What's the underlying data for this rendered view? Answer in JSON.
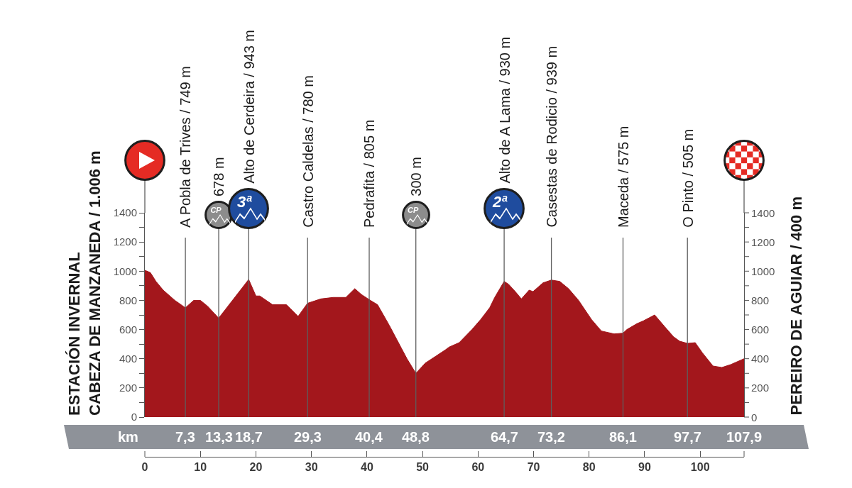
{
  "chart_data": {
    "type": "area",
    "ylabel": "ESTACIÓN INVERNAL\nCABEZA DE MANZANEDA / 1.006 m",
    "y2label": "PEREIRO DE AGUIAR / 400 m",
    "x2label": "km",
    "x": [
      0,
      1.0,
      2.0,
      3.3,
      5.4,
      7.3,
      8.8,
      10.0,
      11.3,
      13.3,
      18.7,
      20.0,
      20.7,
      23.0,
      25.5,
      27.6,
      29.3,
      31.7,
      33.9,
      36.2,
      37.8,
      39.0,
      40.4,
      41.9,
      44.0,
      47.2,
      48.8,
      50.5,
      52.5,
      54.1,
      54.8,
      56.6,
      58.9,
      60.5,
      62.1,
      63.0,
      64.7,
      65.5,
      66.7,
      67.8,
      69.2,
      69.9,
      71.7,
      73.2,
      74.7,
      76.3,
      78.1,
      80.4,
      82.2,
      84.5,
      86.1,
      86.8,
      88.6,
      89.8,
      91.8,
      93.6,
      95.2,
      96.3,
      97.7,
      99.1,
      100.4,
      102.3,
      103.9,
      105.5,
      107.9
    ],
    "values": [
      1006,
      990,
      930,
      870,
      800,
      749,
      800,
      800,
      760,
      678,
      943,
      830,
      830,
      770,
      770,
      690,
      780,
      810,
      820,
      820,
      880,
      840,
      805,
      770,
      630,
      400,
      300,
      370,
      420,
      460,
      480,
      510,
      600,
      670,
      750,
      820,
      930,
      910,
      860,
      810,
      870,
      860,
      920,
      939,
      930,
      880,
      800,
      670,
      590,
      570,
      575,
      600,
      640,
      660,
      700,
      620,
      550,
      520,
      505,
      510,
      440,
      350,
      340,
      360,
      400
    ],
    "color": "#a3171c",
    "xlim": [
      0,
      107.9
    ],
    "xticks": [
      0,
      10,
      20,
      30,
      40,
      50,
      60,
      70,
      80,
      90,
      100,
      {
        "value": 107.9,
        "label": null
      }
    ],
    "x2lim": [
      0,
      107.9
    ],
    "x2ticks": [
      {
        "value": 7.3,
        "label": "7,3"
      },
      {
        "value": 13.3,
        "label": "13,3"
      },
      {
        "value": 18.7,
        "label": "18,7"
      },
      {
        "value": 29.3,
        "label": "29,3"
      },
      {
        "value": 40.4,
        "label": "40,4"
      },
      {
        "value": 48.8,
        "label": "48,8"
      },
      {
        "value": 64.7,
        "label": "64,7"
      },
      {
        "value": 73.2,
        "label": "73,2"
      },
      {
        "value": 86.1,
        "label": "86,1"
      },
      {
        "value": 97.7,
        "label": "97,7"
      },
      {
        "value": 107.9,
        "label": "107,9"
      }
    ],
    "ylim": [
      0,
      1400
    ],
    "yticks": [
      0,
      {
        "value": 100,
        "label": null
      },
      200,
      {
        "value": 300,
        "label": null
      },
      400,
      {
        "value": 500,
        "label": null
      },
      600,
      {
        "value": 700,
        "label": null
      },
      800,
      {
        "value": 900,
        "label": null
      },
      1000,
      {
        "value": 1100,
        "label": null
      },
      1200,
      {
        "value": 1300,
        "label": null
      },
      1400
    ],
    "y2lim": [
      0,
      1400
    ],
    "y2ticks": [
      0,
      {
        "value": 100,
        "label": null
      },
      200,
      {
        "value": 300,
        "label": null
      },
      400,
      {
        "value": 500,
        "label": null
      },
      600,
      {
        "value": 700,
        "label": null
      },
      800,
      {
        "value": 900,
        "label": null
      },
      1000,
      {
        "value": 1100,
        "label": null
      },
      1200,
      {
        "value": 1300,
        "label": null
      },
      1400
    ],
    "ref_lines": [
      {
        "axis": "x",
        "value": 13.3,
        "label": "678 m"
      },
      {
        "axis": "x",
        "value": 18.7,
        "label": "Alto de Cerdeira / 943 m"
      },
      {
        "axis": "x",
        "value": 48.8,
        "label": "300 m"
      },
      {
        "axis": "x",
        "value": 64.7,
        "label": "Alto de A Lama / 930 m"
      },
      {
        "axis": "x",
        "value": 7.3,
        "label": "A Pobla de Trives / 749 m"
      },
      {
        "axis": "x",
        "value": 29.3,
        "label": "Castro Caldelas / 780 m"
      },
      {
        "axis": "x",
        "value": 40.4,
        "label": "Pedrafita / 805 m"
      },
      {
        "axis": "x",
        "value": 73.2,
        "label": "Casestas de Rodicio / 939 m"
      },
      {
        "axis": "x",
        "value": 86.1,
        "label": "Maceda / 575 m"
      },
      {
        "axis": "x",
        "value": 97.7,
        "label": "O Pinto / 505 m"
      }
    ],
    "annotations": [
      "CP",
      "3ª",
      "CP",
      "2ª"
    ]
  }
}
